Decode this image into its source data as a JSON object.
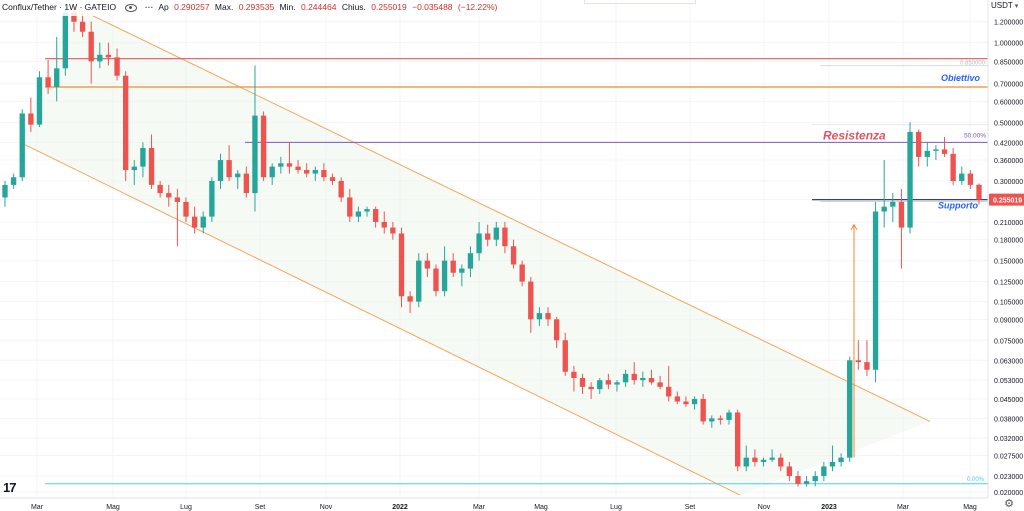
{
  "header": {
    "symbol": "Conflux/Tether · 1W · GATEIO",
    "apertura_label": "Ap",
    "apertura_value": "0.290257",
    "max_label": "Max.",
    "max_value": "0.293535",
    "min_label": "Min.",
    "min_value": "0.244464",
    "chiusura_label": "Chius.",
    "chiusura_value": "0.255019",
    "change_value": "−0.035488",
    "change_pct": "(−12.22%)"
  },
  "price_axis": {
    "unit": "USDT",
    "current_price_label": "0.255019",
    "ticks": [
      "1.200000",
      "1.000000",
      "0.850000",
      "0.700000",
      "0.600000",
      "0.500000",
      "0.420000",
      "0.360000",
      "0.300000",
      "0.255000",
      "0.210000",
      "0.180000",
      "0.150000",
      "0.125000",
      "0.105000",
      "0.090000",
      "0.075000",
      "0.063000",
      "0.053000",
      "0.045000",
      "0.038000",
      "0.032000",
      "0.027500",
      "0.023000",
      "0.020000"
    ]
  },
  "colors": {
    "up": "#26a69a",
    "down": "#ef5350",
    "channel": "#f5a55a",
    "resistenza": "#e05561",
    "obiettivo_line": "#f28a2e",
    "fib_line": "#7e57c2",
    "supporto_line": "#1a237e",
    "label_blue": "#2962ff",
    "fib_low_line": "#4dd0e1"
  },
  "chart_data": {
    "type": "candlestick",
    "title": "Conflux/Tether · 1W · GATEIO",
    "x_ticks": [
      "Mar",
      "Mag",
      "Lug",
      "Set",
      "Nov",
      "2022",
      "Mar",
      "Mag",
      "Lug",
      "Set",
      "Nov",
      "2023",
      "Mar",
      "Mag"
    ],
    "y_scale": "log",
    "ylim": [
      0.019,
      1.45
    ],
    "levels": [
      {
        "label": "0.850000",
        "value": 0.87,
        "kind": "fib-top"
      },
      {
        "label": "Obiettivo",
        "value": 0.68,
        "kind": "target"
      },
      {
        "label": "Resistenza",
        "value": 0.42,
        "kind": "resistance",
        "fib": "50.00%"
      },
      {
        "label": "Supporto",
        "value": 0.255,
        "kind": "support"
      },
      {
        "label": "0.00%",
        "value": 0.0215,
        "kind": "fib-bottom"
      }
    ],
    "series": [
      {
        "o": 0.26,
        "h": 0.3,
        "l": 0.24,
        "c": 0.29
      },
      {
        "o": 0.29,
        "h": 0.32,
        "l": 0.28,
        "c": 0.31
      },
      {
        "o": 0.31,
        "h": 0.56,
        "l": 0.3,
        "c": 0.54
      },
      {
        "o": 0.54,
        "h": 0.62,
        "l": 0.46,
        "c": 0.49
      },
      {
        "o": 0.49,
        "h": 0.78,
        "l": 0.48,
        "c": 0.74
      },
      {
        "o": 0.74,
        "h": 0.86,
        "l": 0.64,
        "c": 0.68
      },
      {
        "o": 0.68,
        "h": 1.05,
        "l": 0.6,
        "c": 0.8
      },
      {
        "o": 0.8,
        "h": 1.4,
        "l": 0.75,
        "c": 1.3
      },
      {
        "o": 1.3,
        "h": 1.4,
        "l": 1.1,
        "c": 1.2
      },
      {
        "o": 1.2,
        "h": 1.3,
        "l": 1.05,
        "c": 1.1
      },
      {
        "o": 1.1,
        "h": 1.2,
        "l": 0.7,
        "c": 0.85
      },
      {
        "o": 0.85,
        "h": 1.0,
        "l": 0.8,
        "c": 0.9
      },
      {
        "o": 0.9,
        "h": 1.0,
        "l": 0.82,
        "c": 0.88
      },
      {
        "o": 0.88,
        "h": 0.95,
        "l": 0.72,
        "c": 0.75
      },
      {
        "o": 0.75,
        "h": 0.78,
        "l": 0.3,
        "c": 0.33
      },
      {
        "o": 0.33,
        "h": 0.36,
        "l": 0.29,
        "c": 0.34
      },
      {
        "o": 0.34,
        "h": 0.42,
        "l": 0.31,
        "c": 0.4
      },
      {
        "o": 0.4,
        "h": 0.45,
        "l": 0.28,
        "c": 0.29
      },
      {
        "o": 0.29,
        "h": 0.3,
        "l": 0.26,
        "c": 0.27
      },
      {
        "o": 0.27,
        "h": 0.29,
        "l": 0.24,
        "c": 0.26
      },
      {
        "o": 0.26,
        "h": 0.28,
        "l": 0.17,
        "c": 0.25
      },
      {
        "o": 0.25,
        "h": 0.26,
        "l": 0.21,
        "c": 0.22
      },
      {
        "o": 0.22,
        "h": 0.24,
        "l": 0.19,
        "c": 0.2
      },
      {
        "o": 0.2,
        "h": 0.23,
        "l": 0.19,
        "c": 0.22
      },
      {
        "o": 0.22,
        "h": 0.31,
        "l": 0.21,
        "c": 0.3
      },
      {
        "o": 0.3,
        "h": 0.38,
        "l": 0.28,
        "c": 0.36
      },
      {
        "o": 0.36,
        "h": 0.41,
        "l": 0.3,
        "c": 0.31
      },
      {
        "o": 0.31,
        "h": 0.33,
        "l": 0.28,
        "c": 0.32
      },
      {
        "o": 0.32,
        "h": 0.34,
        "l": 0.26,
        "c": 0.27
      },
      {
        "o": 0.27,
        "h": 0.82,
        "l": 0.23,
        "c": 0.53
      },
      {
        "o": 0.53,
        "h": 0.55,
        "l": 0.3,
        "c": 0.31
      },
      {
        "o": 0.31,
        "h": 0.35,
        "l": 0.29,
        "c": 0.34
      },
      {
        "o": 0.34,
        "h": 0.37,
        "l": 0.32,
        "c": 0.35
      },
      {
        "o": 0.35,
        "h": 0.42,
        "l": 0.32,
        "c": 0.34
      },
      {
        "o": 0.34,
        "h": 0.36,
        "l": 0.32,
        "c": 0.33
      },
      {
        "o": 0.33,
        "h": 0.35,
        "l": 0.31,
        "c": 0.32
      },
      {
        "o": 0.32,
        "h": 0.34,
        "l": 0.3,
        "c": 0.33
      },
      {
        "o": 0.33,
        "h": 0.35,
        "l": 0.3,
        "c": 0.31
      },
      {
        "o": 0.31,
        "h": 0.32,
        "l": 0.29,
        "c": 0.3
      },
      {
        "o": 0.3,
        "h": 0.31,
        "l": 0.25,
        "c": 0.26
      },
      {
        "o": 0.26,
        "h": 0.28,
        "l": 0.21,
        "c": 0.22
      },
      {
        "o": 0.22,
        "h": 0.24,
        "l": 0.21,
        "c": 0.23
      },
      {
        "o": 0.23,
        "h": 0.24,
        "l": 0.22,
        "c": 0.235
      },
      {
        "o": 0.235,
        "h": 0.24,
        "l": 0.2,
        "c": 0.21
      },
      {
        "o": 0.21,
        "h": 0.23,
        "l": 0.19,
        "c": 0.2
      },
      {
        "o": 0.2,
        "h": 0.21,
        "l": 0.18,
        "c": 0.19
      },
      {
        "o": 0.19,
        "h": 0.2,
        "l": 0.1,
        "c": 0.11
      },
      {
        "o": 0.11,
        "h": 0.115,
        "l": 0.095,
        "c": 0.105
      },
      {
        "o": 0.105,
        "h": 0.16,
        "l": 0.1,
        "c": 0.15
      },
      {
        "o": 0.15,
        "h": 0.16,
        "l": 0.13,
        "c": 0.14
      },
      {
        "o": 0.14,
        "h": 0.145,
        "l": 0.11,
        "c": 0.115
      },
      {
        "o": 0.115,
        "h": 0.17,
        "l": 0.11,
        "c": 0.15
      },
      {
        "o": 0.15,
        "h": 0.16,
        "l": 0.13,
        "c": 0.135
      },
      {
        "o": 0.135,
        "h": 0.145,
        "l": 0.12,
        "c": 0.14
      },
      {
        "o": 0.14,
        "h": 0.17,
        "l": 0.13,
        "c": 0.16
      },
      {
        "o": 0.16,
        "h": 0.21,
        "l": 0.15,
        "c": 0.19
      },
      {
        "o": 0.19,
        "h": 0.205,
        "l": 0.17,
        "c": 0.18
      },
      {
        "o": 0.18,
        "h": 0.21,
        "l": 0.17,
        "c": 0.2
      },
      {
        "o": 0.2,
        "h": 0.21,
        "l": 0.16,
        "c": 0.17
      },
      {
        "o": 0.17,
        "h": 0.18,
        "l": 0.14,
        "c": 0.145
      },
      {
        "o": 0.145,
        "h": 0.15,
        "l": 0.12,
        "c": 0.125
      },
      {
        "o": 0.125,
        "h": 0.13,
        "l": 0.08,
        "c": 0.09
      },
      {
        "o": 0.09,
        "h": 0.1,
        "l": 0.085,
        "c": 0.095
      },
      {
        "o": 0.095,
        "h": 0.1,
        "l": 0.085,
        "c": 0.09
      },
      {
        "o": 0.09,
        "h": 0.092,
        "l": 0.07,
        "c": 0.075
      },
      {
        "o": 0.075,
        "h": 0.08,
        "l": 0.055,
        "c": 0.057
      },
      {
        "o": 0.057,
        "h": 0.06,
        "l": 0.048,
        "c": 0.054
      },
      {
        "o": 0.054,
        "h": 0.056,
        "l": 0.047,
        "c": 0.05
      },
      {
        "o": 0.05,
        "h": 0.052,
        "l": 0.045,
        "c": 0.049
      },
      {
        "o": 0.049,
        "h": 0.054,
        "l": 0.047,
        "c": 0.053
      },
      {
        "o": 0.053,
        "h": 0.056,
        "l": 0.049,
        "c": 0.051
      },
      {
        "o": 0.051,
        "h": 0.053,
        "l": 0.048,
        "c": 0.052
      },
      {
        "o": 0.052,
        "h": 0.058,
        "l": 0.05,
        "c": 0.056
      },
      {
        "o": 0.056,
        "h": 0.062,
        "l": 0.051,
        "c": 0.053
      },
      {
        "o": 0.053,
        "h": 0.057,
        "l": 0.05,
        "c": 0.054
      },
      {
        "o": 0.054,
        "h": 0.058,
        "l": 0.051,
        "c": 0.052
      },
      {
        "o": 0.052,
        "h": 0.055,
        "l": 0.049,
        "c": 0.05
      },
      {
        "o": 0.05,
        "h": 0.06,
        "l": 0.044,
        "c": 0.046
      },
      {
        "o": 0.046,
        "h": 0.048,
        "l": 0.043,
        "c": 0.044
      },
      {
        "o": 0.044,
        "h": 0.046,
        "l": 0.042,
        "c": 0.043
      },
      {
        "o": 0.043,
        "h": 0.046,
        "l": 0.041,
        "c": 0.045
      },
      {
        "o": 0.045,
        "h": 0.047,
        "l": 0.036,
        "c": 0.037
      },
      {
        "o": 0.037,
        "h": 0.039,
        "l": 0.035,
        "c": 0.038
      },
      {
        "o": 0.038,
        "h": 0.039,
        "l": 0.036,
        "c": 0.0375
      },
      {
        "o": 0.0375,
        "h": 0.041,
        "l": 0.036,
        "c": 0.04
      },
      {
        "o": 0.04,
        "h": 0.041,
        "l": 0.024,
        "c": 0.025
      },
      {
        "o": 0.025,
        "h": 0.03,
        "l": 0.024,
        "c": 0.027
      },
      {
        "o": 0.027,
        "h": 0.029,
        "l": 0.025,
        "c": 0.026
      },
      {
        "o": 0.026,
        "h": 0.027,
        "l": 0.025,
        "c": 0.0265
      },
      {
        "o": 0.0265,
        "h": 0.029,
        "l": 0.026,
        "c": 0.027
      },
      {
        "o": 0.027,
        "h": 0.028,
        "l": 0.024,
        "c": 0.025
      },
      {
        "o": 0.025,
        "h": 0.026,
        "l": 0.022,
        "c": 0.023
      },
      {
        "o": 0.023,
        "h": 0.024,
        "l": 0.021,
        "c": 0.0215
      },
      {
        "o": 0.0215,
        "h": 0.023,
        "l": 0.021,
        "c": 0.022
      },
      {
        "o": 0.022,
        "h": 0.024,
        "l": 0.021,
        "c": 0.023
      },
      {
        "o": 0.023,
        "h": 0.026,
        "l": 0.022,
        "c": 0.025
      },
      {
        "o": 0.025,
        "h": 0.03,
        "l": 0.024,
        "c": 0.026
      },
      {
        "o": 0.026,
        "h": 0.028,
        "l": 0.025,
        "c": 0.027
      },
      {
        "o": 0.027,
        "h": 0.065,
        "l": 0.026,
        "c": 0.063
      },
      {
        "o": 0.063,
        "h": 0.075,
        "l": 0.058,
        "c": 0.062
      },
      {
        "o": 0.062,
        "h": 0.075,
        "l": 0.055,
        "c": 0.058
      },
      {
        "o": 0.058,
        "h": 0.25,
        "l": 0.052,
        "c": 0.23
      },
      {
        "o": 0.23,
        "h": 0.36,
        "l": 0.2,
        "c": 0.24
      },
      {
        "o": 0.24,
        "h": 0.27,
        "l": 0.21,
        "c": 0.25
      },
      {
        "o": 0.25,
        "h": 0.28,
        "l": 0.14,
        "c": 0.2
      },
      {
        "o": 0.2,
        "h": 0.5,
        "l": 0.19,
        "c": 0.46
      },
      {
        "o": 0.46,
        "h": 0.47,
        "l": 0.34,
        "c": 0.37
      },
      {
        "o": 0.37,
        "h": 0.42,
        "l": 0.34,
        "c": 0.39
      },
      {
        "o": 0.39,
        "h": 0.41,
        "l": 0.36,
        "c": 0.395
      },
      {
        "o": 0.395,
        "h": 0.44,
        "l": 0.37,
        "c": 0.38
      },
      {
        "o": 0.38,
        "h": 0.4,
        "l": 0.29,
        "c": 0.3
      },
      {
        "o": 0.3,
        "h": 0.34,
        "l": 0.29,
        "c": 0.32
      },
      {
        "o": 0.32,
        "h": 0.33,
        "l": 0.28,
        "c": 0.29
      },
      {
        "o": 0.290257,
        "h": 0.293535,
        "l": 0.244464,
        "c": 0.255019
      }
    ]
  }
}
